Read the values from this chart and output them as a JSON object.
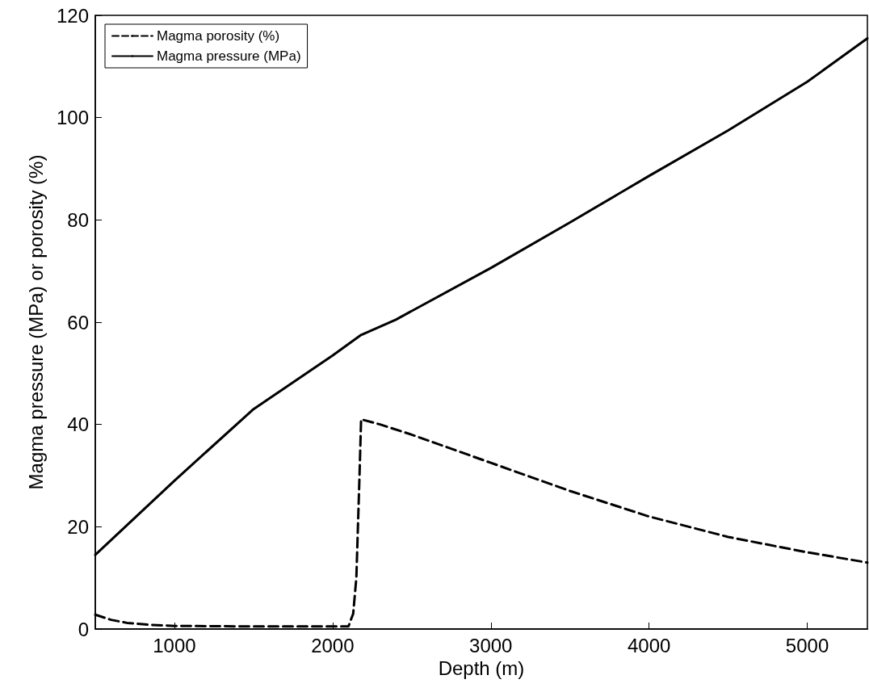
{
  "chart_data": {
    "type": "line",
    "xlabel": "Depth (m)",
    "ylabel": "Magma pressure (MPa) or porosity (%)",
    "xlim": [
      500,
      5380
    ],
    "xticks": [
      1000,
      2000,
      3000,
      4000,
      5000
    ],
    "ylim": [
      0,
      120
    ],
    "yticks": [
      0,
      20,
      40,
      60,
      80,
      100,
      120
    ],
    "grid": false,
    "legend": "top left",
    "marker": "none",
    "series": [
      {
        "name": "Magma porosity (%)",
        "color": "#000000",
        "line_style": "dashed",
        "x": [
          500,
          600,
          700,
          850,
          1000,
          1500,
          2000,
          2100,
          2130,
          2150,
          2170,
          2180,
          2300,
          2500,
          3000,
          3500,
          4000,
          4500,
          5000,
          5380
        ],
        "values": [
          2.8,
          1.8,
          1.2,
          0.8,
          0.6,
          0.5,
          0.5,
          0.5,
          3,
          10,
          30,
          41,
          40,
          38,
          32.5,
          27,
          22,
          18,
          15,
          13
        ]
      },
      {
        "name": "Magma pressure (MPa)",
        "color": "#000000",
        "line_style": "solid",
        "x": [
          500,
          1000,
          1500,
          2000,
          2180,
          2400,
          3000,
          3500,
          4000,
          4500,
          5000,
          5380
        ],
        "values": [
          14.5,
          29,
          43,
          53.5,
          57.5,
          60.5,
          70.6,
          79.5,
          88.6,
          97.5,
          107,
          115.5
        ]
      }
    ]
  }
}
